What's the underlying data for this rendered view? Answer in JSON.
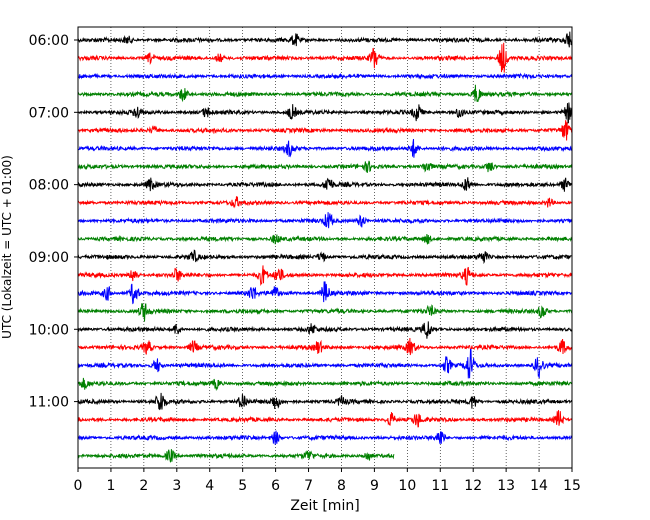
{
  "chart_data": {
    "type": "line",
    "title": "",
    "xlabel": "Zeit  [min]",
    "ylabel": "UTC (Lokalzeit = UTC + 01:00)",
    "xlim": [
      0,
      15
    ],
    "x_ticks": [
      0,
      1,
      2,
      3,
      4,
      5,
      6,
      7,
      8,
      9,
      10,
      11,
      12,
      13,
      14,
      15
    ],
    "x_tick_labels": [
      "0",
      "1",
      "2",
      "3",
      "4",
      "5",
      "6",
      "7",
      "8",
      "9",
      "10",
      "11",
      "12",
      "13",
      "14",
      "15"
    ],
    "y_tick_labels": [
      "06:00",
      "07:00",
      "08:00",
      "09:00",
      "10:00",
      "11:00"
    ],
    "trace_minutes": 15,
    "trace_colors": [
      "#000000",
      "#ff0000",
      "#0000ff",
      "#008000"
    ],
    "grid": "vertical dotted",
    "traces": [
      {
        "start": "06:00",
        "end_min": 15,
        "events": [
          [
            6.6,
            1.2
          ],
          [
            14.9,
            1.8
          ],
          [
            1.5,
            0.8
          ]
        ]
      },
      {
        "start": "06:15",
        "end_min": 15,
        "events": [
          [
            2.2,
            1.0
          ],
          [
            9.0,
            2.5
          ],
          [
            12.9,
            3.5
          ],
          [
            4.3,
            0.9
          ]
        ]
      },
      {
        "start": "06:30",
        "end_min": 15,
        "events": []
      },
      {
        "start": "06:45",
        "end_min": 15,
        "events": [
          [
            3.2,
            1.5
          ],
          [
            12.1,
            2.0
          ]
        ]
      },
      {
        "start": "07:00",
        "end_min": 15,
        "events": [
          [
            1.8,
            1.3
          ],
          [
            3.9,
            1.0
          ],
          [
            6.5,
            1.5
          ],
          [
            10.3,
            1.8
          ],
          [
            11.6,
            1.3
          ],
          [
            14.9,
            2.0
          ]
        ]
      },
      {
        "start": "07:15",
        "end_min": 15,
        "events": [
          [
            14.8,
            2.0
          ],
          [
            2.3,
            0.8
          ]
        ]
      },
      {
        "start": "07:30",
        "end_min": 15,
        "events": [
          [
            6.4,
            1.5
          ],
          [
            10.2,
            2.0
          ]
        ]
      },
      {
        "start": "07:45",
        "end_min": 15,
        "events": [
          [
            8.8,
            1.0
          ],
          [
            10.6,
            1.2
          ],
          [
            12.5,
            1.2
          ]
        ]
      },
      {
        "start": "08:00",
        "end_min": 15,
        "events": [
          [
            2.2,
            1.2
          ],
          [
            7.6,
            1.8
          ],
          [
            11.8,
            1.5
          ],
          [
            14.8,
            1.5
          ]
        ]
      },
      {
        "start": "08:15",
        "end_min": 15,
        "events": [
          [
            4.8,
            1.0
          ],
          [
            14.3,
            1.0
          ]
        ]
      },
      {
        "start": "08:30",
        "end_min": 15,
        "events": [
          [
            7.6,
            1.8
          ],
          [
            8.6,
            1.3
          ]
        ]
      },
      {
        "start": "08:45",
        "end_min": 15,
        "events": [
          [
            6.0,
            1.0
          ],
          [
            10.6,
            1.0
          ]
        ]
      },
      {
        "start": "09:00",
        "end_min": 15,
        "events": [
          [
            3.5,
            1.2
          ],
          [
            7.4,
            1.0
          ],
          [
            12.3,
            1.3
          ]
        ]
      },
      {
        "start": "09:15",
        "end_min": 15,
        "events": [
          [
            1.7,
            1.5
          ],
          [
            3.0,
            1.3
          ],
          [
            5.6,
            2.0
          ],
          [
            6.1,
            1.5
          ],
          [
            11.8,
            1.8
          ]
        ]
      },
      {
        "start": "09:30",
        "end_min": 15,
        "events": [
          [
            0.9,
            1.5
          ],
          [
            1.7,
            2.5
          ],
          [
            5.3,
            1.5
          ],
          [
            6.0,
            1.3
          ],
          [
            7.5,
            2.5
          ]
        ]
      },
      {
        "start": "09:45",
        "end_min": 15,
        "events": [
          [
            2.0,
            2.0
          ],
          [
            10.7,
            1.0
          ],
          [
            14.1,
            1.5
          ]
        ]
      },
      {
        "start": "10:00",
        "end_min": 15,
        "events": [
          [
            3.0,
            1.2
          ],
          [
            7.1,
            1.0
          ],
          [
            10.6,
            2.0
          ]
        ]
      },
      {
        "start": "10:15",
        "end_min": 15,
        "events": [
          [
            2.1,
            1.5
          ],
          [
            3.5,
            1.3
          ],
          [
            7.3,
            1.3
          ],
          [
            10.1,
            1.8
          ],
          [
            14.7,
            1.5
          ]
        ]
      },
      {
        "start": "10:30",
        "end_min": 15,
        "events": [
          [
            2.4,
            1.5
          ],
          [
            11.9,
            3.5
          ],
          [
            14.0,
            2.5
          ],
          [
            11.2,
            1.8
          ]
        ]
      },
      {
        "start": "10:45",
        "end_min": 15,
        "events": [
          [
            0.2,
            1.0
          ],
          [
            4.2,
            1.0
          ]
        ]
      },
      {
        "start": "11:00",
        "end_min": 15,
        "events": [
          [
            2.5,
            2.5
          ],
          [
            5.0,
            1.8
          ],
          [
            6.0,
            1.5
          ],
          [
            8.0,
            1.0
          ],
          [
            12.0,
            1.5
          ]
        ]
      },
      {
        "start": "11:15",
        "end_min": 15,
        "events": [
          [
            9.5,
            1.5
          ],
          [
            10.3,
            1.5
          ],
          [
            14.6,
            2.0
          ]
        ]
      },
      {
        "start": "11:30",
        "end_min": 15,
        "events": [
          [
            6.0,
            1.5
          ],
          [
            11.0,
            1.8
          ]
        ]
      },
      {
        "start": "11:45",
        "end_min": 9.6,
        "events": [
          [
            2.8,
            1.5
          ],
          [
            7.0,
            1.0
          ],
          [
            8.8,
            1.0
          ]
        ]
      }
    ]
  }
}
